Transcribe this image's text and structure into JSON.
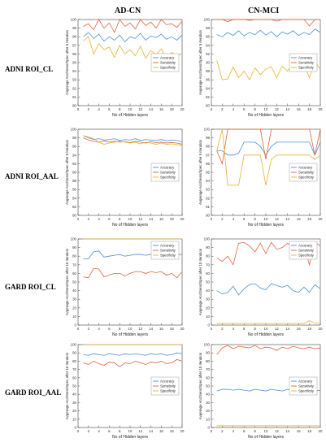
{
  "columns": [
    "AD-CN",
    "CN-MCI"
  ],
  "rows": [
    "ADNI ROI_CL",
    "ADNI ROI_AAL",
    "GARD ROI_CL",
    "GARD ROI_AAL"
  ],
  "colors": {
    "Accuracy": "#4a90d9",
    "Sensitivity": "#e0623a",
    "Specificity": "#e8b030"
  },
  "chart_data": [
    {
      "type": "line",
      "column": "AD-CN",
      "row": "ADNI ROI_CL",
      "xlabel": "No of Hidden layers",
      "ylabel": "Avgerage Acc/Sens/Spec after 5 iteration",
      "xlim": [
        0,
        20
      ],
      "ylim": [
        90,
        100
      ],
      "xticks": [
        0,
        2,
        4,
        6,
        8,
        10,
        12,
        14,
        16,
        18,
        20
      ],
      "yticks": [
        90,
        91,
        92,
        93,
        94,
        95,
        96,
        97,
        98,
        99,
        100
      ],
      "legend_position": "right-middle",
      "x": [
        1,
        2,
        3,
        4,
        5,
        6,
        7,
        8,
        9,
        10,
        11,
        12,
        13,
        14,
        15,
        16,
        17,
        18,
        19,
        20
      ],
      "series": [
        {
          "name": "Accuracy",
          "values": [
            98.0,
            98.5,
            97.8,
            98.3,
            97.5,
            98.0,
            97.6,
            98.2,
            97.4,
            98.0,
            97.8,
            98.4,
            97.6,
            98.1,
            97.9,
            98.3,
            97.7,
            98.0,
            97.6,
            98.2
          ]
        },
        {
          "name": "Sensitivity",
          "values": [
            99.2,
            99.5,
            98.8,
            100.0,
            99.0,
            99.6,
            98.5,
            100.0,
            99.2,
            99.6,
            98.9,
            100.0,
            99.3,
            99.7,
            99.0,
            100.0,
            99.4,
            99.5,
            99.1,
            99.8
          ]
        },
        {
          "name": "Specificity",
          "values": [
            97.5,
            98.0,
            96.0,
            97.2,
            96.5,
            96.8,
            95.6,
            97.0,
            96.0,
            96.5,
            95.8,
            96.9,
            95.5,
            96.4,
            95.9,
            96.6,
            95.4,
            96.2,
            95.7,
            96.1
          ]
        }
      ]
    },
    {
      "type": "line",
      "column": "CN-MCI",
      "row": "ADNI ROI_CL",
      "xlabel": "No of Hidden layers",
      "ylabel": "Avgerage Acc/Sens/Spec after 5 iteration",
      "xlim": [
        0,
        20
      ],
      "ylim": [
        80,
        100
      ],
      "xticks": [
        0,
        2,
        4,
        6,
        8,
        10,
        12,
        14,
        16,
        18,
        20
      ],
      "yticks": [
        80,
        82,
        84,
        86,
        88,
        90,
        92,
        94,
        96,
        98,
        100
      ],
      "legend_position": "right-middle",
      "x": [
        1,
        2,
        3,
        4,
        5,
        6,
        7,
        8,
        9,
        10,
        11,
        12,
        13,
        14,
        15,
        16,
        17,
        18,
        19,
        20
      ],
      "series": [
        {
          "name": "Accuracy",
          "values": [
            96.5,
            96.0,
            97.0,
            96.3,
            97.4,
            96.2,
            97.0,
            96.5,
            97.5,
            96.4,
            97.2,
            96.0,
            97.1,
            96.6,
            97.4,
            96.3,
            97.0,
            96.5,
            97.8,
            97.0
          ]
        },
        {
          "name": "Sensitivity",
          "values": [
            100,
            100,
            99.5,
            100,
            100,
            100,
            99.8,
            100,
            100,
            100,
            100,
            99.6,
            100,
            100,
            100,
            100,
            100,
            98.5,
            100,
            100
          ]
        },
        {
          "name": "Specificity",
          "values": [
            90.5,
            86.0,
            86.2,
            89.0,
            86.5,
            88.0,
            86.0,
            88.8,
            87.2,
            88.5,
            89.0,
            86.5,
            89.2,
            88.0,
            90.0,
            88.5,
            89.5,
            86.5,
            90.2,
            88.5
          ]
        }
      ]
    },
    {
      "type": "line",
      "column": "AD-CN",
      "row": "ADNI ROI_AAL",
      "xlabel": "No of Hidden layers",
      "ylabel": "Avgerage Acc/Sens/Spec after 5 iteration",
      "xlim": [
        0,
        20
      ],
      "ylim": [
        80,
        100
      ],
      "xticks": [
        0,
        2,
        4,
        6,
        8,
        10,
        12,
        14,
        16,
        18,
        20
      ],
      "yticks": [
        80,
        82,
        84,
        86,
        88,
        90,
        92,
        94,
        96,
        98,
        100
      ],
      "legend_position": "right-middle",
      "x": [
        1,
        2,
        3,
        4,
        5,
        6,
        7,
        8,
        9,
        10,
        11,
        12,
        13,
        14,
        15,
        16,
        17,
        18,
        19,
        20
      ],
      "series": [
        {
          "name": "Accuracy",
          "values": [
            98.5,
            98.0,
            97.6,
            97.8,
            97.5,
            97.6,
            97.8,
            97.4,
            97.6,
            97.5,
            97.8,
            97.4,
            97.6,
            97.5,
            97.4,
            97.6,
            97.3,
            97.5,
            97.4,
            97.0
          ]
        },
        {
          "name": "Sensitivity",
          "values": [
            98.0,
            97.5,
            97.2,
            97.0,
            97.3,
            97.0,
            97.2,
            97.0,
            97.1,
            96.9,
            97.2,
            97.0,
            96.8,
            97.1,
            96.9,
            97.0,
            96.8,
            96.9,
            96.8,
            96.5
          ]
        },
        {
          "name": "Specificity",
          "values": [
            98.5,
            98.2,
            97.8,
            97.0,
            96.5,
            96.8,
            97.0,
            97.2,
            97.0,
            96.8,
            97.0,
            96.6,
            97.0,
            96.8,
            96.5,
            96.8,
            96.5,
            96.6,
            96.4,
            96.2
          ]
        }
      ]
    },
    {
      "type": "line",
      "column": "CN-MCI",
      "row": "ADNI ROI_AAL",
      "xlabel": "No of Hidden layers",
      "ylabel": "Avgerage Acc/Sens/Spec after 5 iteration",
      "xlim": [
        0,
        20
      ],
      "ylim": [
        90,
        100
      ],
      "xticks": [
        0,
        2,
        4,
        6,
        8,
        10,
        12,
        14,
        16,
        18,
        20
      ],
      "yticks": [
        90,
        91,
        92,
        93,
        94,
        95,
        96,
        97,
        98,
        99,
        100
      ],
      "legend_position": "right-middle",
      "x": [
        1,
        2,
        3,
        4,
        5,
        6,
        7,
        8,
        9,
        10,
        11,
        12,
        13,
        14,
        15,
        16,
        17,
        18,
        19,
        20
      ],
      "series": [
        {
          "name": "Accuracy",
          "values": [
            97.5,
            97.5,
            97.0,
            97.0,
            97.2,
            98.5,
            98.5,
            98.5,
            98.0,
            97.0,
            98.0,
            98.5,
            98.5,
            98.5,
            98.5,
            98.5,
            98.5,
            98.5,
            97.0,
            98.5
          ]
        },
        {
          "name": "Sensitivity",
          "values": [
            97.5,
            96.0,
            100,
            100,
            100,
            100,
            100,
            100,
            100,
            96.5,
            100,
            100,
            100,
            100,
            100,
            100,
            100,
            100,
            97.0,
            100
          ]
        },
        {
          "name": "Specificity",
          "values": [
            97.5,
            100,
            93.5,
            93.5,
            93.5,
            97.0,
            97.0,
            97.0,
            97.0,
            93.5,
            96.5,
            97.0,
            97.0,
            97.0,
            97.0,
            97.0,
            97.0,
            97.0,
            96.5,
            97.0
          ]
        }
      ]
    },
    {
      "type": "line",
      "column": "AD-CN",
      "row": "GARD ROI_CL",
      "xlabel": "No of Hidden layers",
      "ylabel": "Avgerage Acc/Sens/Spec after 10 iteration",
      "xlim": [
        0,
        20
      ],
      "ylim": [
        0,
        100
      ],
      "xticks": [
        0,
        2,
        4,
        6,
        8,
        10,
        12,
        14,
        16,
        18,
        20
      ],
      "yticks": [
        0,
        10,
        20,
        30,
        40,
        50,
        60,
        70,
        80,
        90,
        100
      ],
      "legend_position": "top-right",
      "x": [
        1,
        2,
        3,
        4,
        5,
        6,
        7,
        8,
        9,
        10,
        11,
        12,
        13,
        14,
        15,
        16,
        17,
        18,
        19,
        20
      ],
      "series": [
        {
          "name": "Accuracy",
          "values": [
            77,
            77,
            85,
            86,
            79,
            80,
            81,
            82,
            80,
            81,
            82,
            82,
            81,
            82,
            82,
            83,
            82,
            82,
            82,
            82
          ]
        },
        {
          "name": "Sensitivity",
          "values": [
            56,
            55,
            66,
            65,
            56,
            58,
            60,
            60,
            57,
            60,
            62,
            62,
            60,
            62,
            61,
            62,
            58,
            60,
            55,
            62
          ]
        },
        {
          "name": "Specificity",
          "values": [
            100,
            100,
            100,
            100,
            100,
            100,
            100,
            100,
            100,
            100,
            100,
            100,
            100,
            100,
            100,
            100,
            100,
            100,
            100,
            100
          ]
        }
      ]
    },
    {
      "type": "line",
      "column": "CN-MCI",
      "row": "GARD ROI_CL",
      "xlabel": "No of Hidden layers",
      "ylabel": "Avgerage Acc/Sens/Spec after 10 iteration",
      "xlim": [
        0,
        20
      ],
      "ylim": [
        0,
        100
      ],
      "xticks": [
        0,
        2,
        4,
        6,
        8,
        10,
        12,
        14,
        16,
        18,
        20
      ],
      "yticks": [
        0,
        10,
        20,
        30,
        40,
        50,
        60,
        70,
        80,
        90,
        100
      ],
      "legend_position": "top-right",
      "x": [
        1,
        2,
        3,
        4,
        5,
        6,
        7,
        8,
        9,
        10,
        11,
        12,
        13,
        14,
        15,
        16,
        17,
        18,
        19,
        20
      ],
      "series": [
        {
          "name": "Accuracy",
          "values": [
            40,
            36,
            38,
            45,
            35,
            42,
            47,
            48,
            43,
            41,
            48,
            46,
            44,
            46,
            40,
            38,
            44,
            38,
            47,
            42
          ]
        },
        {
          "name": "Sensitivity",
          "values": [
            78,
            74,
            80,
            70,
            95,
            96,
            92,
            85,
            95,
            83,
            96,
            88,
            90,
            95,
            90,
            85,
            92,
            70,
            96,
            92
          ]
        },
        {
          "name": "Specificity",
          "values": [
            2,
            2,
            2,
            2,
            2,
            2,
            2,
            2,
            2,
            2,
            2,
            2,
            2,
            2,
            2,
            2,
            2,
            5,
            2,
            2
          ]
        }
      ]
    },
    {
      "type": "line",
      "column": "AD-CN",
      "row": "GARD ROI_AAL",
      "xlabel": "No of Hidden layers",
      "ylabel": "Avgerage Acc/Sens/Spec after 10 iteration",
      "xlim": [
        0,
        20
      ],
      "ylim": [
        0,
        100
      ],
      "xticks": [
        0,
        2,
        4,
        6,
        8,
        10,
        12,
        14,
        16,
        18,
        20
      ],
      "yticks": [
        0,
        10,
        20,
        30,
        40,
        50,
        60,
        70,
        80,
        90,
        100
      ],
      "legend_position": "right-middle",
      "x": [
        1,
        2,
        3,
        4,
        5,
        6,
        7,
        8,
        9,
        10,
        11,
        12,
        13,
        14,
        15,
        16,
        17,
        18,
        19,
        20
      ],
      "series": [
        {
          "name": "Accuracy",
          "values": [
            88,
            87,
            89,
            88,
            87,
            89,
            88,
            87,
            89,
            88,
            89,
            88,
            87,
            89,
            88,
            89,
            87,
            88,
            90,
            89
          ]
        },
        {
          "name": "Sensitivity",
          "values": [
            78,
            76,
            80,
            77,
            75,
            79,
            78,
            73,
            78,
            77,
            80,
            78,
            76,
            79,
            78,
            80,
            77,
            78,
            82,
            80
          ]
        },
        {
          "name": "Specificity",
          "values": [
            100,
            100,
            100,
            100,
            100,
            100,
            100,
            100,
            100,
            100,
            100,
            100,
            100,
            100,
            100,
            100,
            100,
            100,
            100,
            100
          ]
        }
      ]
    },
    {
      "type": "line",
      "column": "CN-MCI",
      "row": "GARD ROI_AAL",
      "xlabel": "No of Hidden layers",
      "ylabel": "Avgerage Acc/Sens/Spec after 10 iteration",
      "xlim": [
        0,
        20
      ],
      "ylim": [
        0,
        100
      ],
      "xticks": [
        0,
        2,
        4,
        6,
        8,
        10,
        12,
        14,
        16,
        18,
        20
      ],
      "yticks": [
        0,
        10,
        20,
        30,
        40,
        50,
        60,
        70,
        80,
        90,
        100
      ],
      "legend_position": "right-middle",
      "x": [
        1,
        2,
        3,
        4,
        5,
        6,
        7,
        8,
        9,
        10,
        11,
        12,
        13,
        14,
        15,
        16,
        17,
        18,
        19,
        20
      ],
      "series": [
        {
          "name": "Accuracy",
          "values": [
            44,
            46,
            46,
            45,
            46,
            45,
            44,
            46,
            45,
            44,
            46,
            45,
            44,
            46,
            45,
            44,
            46,
            45,
            44,
            45
          ]
        },
        {
          "name": "Sensitivity",
          "values": [
            88,
            96,
            99,
            95,
            98,
            97,
            96,
            99,
            95,
            97,
            96,
            93,
            97,
            95,
            98,
            96,
            95,
            97,
            95,
            96
          ]
        },
        {
          "name": "Specificity",
          "values": [
            2,
            2,
            2,
            2,
            2,
            2,
            2,
            2,
            2,
            2,
            2,
            2,
            2,
            2,
            2,
            2,
            2,
            2,
            2,
            2
          ]
        }
      ]
    }
  ]
}
